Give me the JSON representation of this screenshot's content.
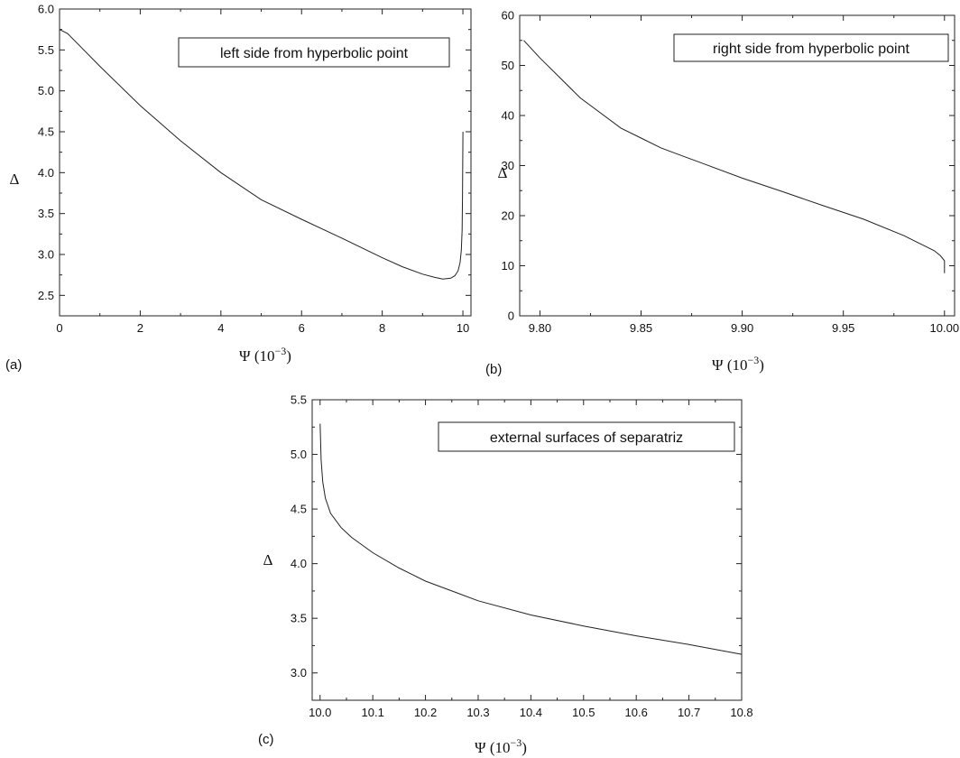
{
  "chart_data": [
    {
      "type": "line",
      "panel_label": "(a)",
      "annotation": "left side from hyperbolic point",
      "xlabel": "Ψ (10⁻³)",
      "ylabel": "Δ",
      "xlim": [
        0,
        10.2
      ],
      "ylim": [
        2.25,
        6.0
      ],
      "xticks": [
        0,
        2,
        4,
        6,
        8,
        10
      ],
      "yticks": [
        2.5,
        3.0,
        3.5,
        4.0,
        4.5,
        5.0,
        5.5,
        6.0
      ],
      "ytick_decimals": 1,
      "grid": false,
      "series": [
        {
          "x": [
            0,
            0.2,
            0.5,
            1.0,
            2.0,
            3.0,
            4.0,
            5.0,
            6.0,
            7.0,
            8.0,
            8.5,
            9.0,
            9.3,
            9.5,
            9.7,
            9.8,
            9.88,
            9.93,
            9.96,
            9.98,
            9.99,
            10.0
          ],
          "y": [
            5.75,
            5.7,
            5.55,
            5.3,
            4.82,
            4.39,
            4.0,
            3.67,
            3.43,
            3.2,
            2.96,
            2.85,
            2.76,
            2.72,
            2.7,
            2.71,
            2.74,
            2.8,
            2.9,
            3.05,
            3.3,
            3.7,
            4.5
          ]
        }
      ]
    },
    {
      "type": "line",
      "panel_label": "(b)",
      "annotation": "right side from hyperbolic point",
      "xlabel": "Ψ (10⁻³)",
      "ylabel": "Δ",
      "xlim": [
        9.79,
        10.005
      ],
      "ylim": [
        0,
        60
      ],
      "xticks": [
        9.8,
        9.85,
        9.9,
        9.95,
        10.0
      ],
      "xtick_decimals": 2,
      "yticks": [
        0,
        10,
        20,
        30,
        40,
        50,
        60
      ],
      "grid": false,
      "series": [
        {
          "x": [
            9.792,
            9.8,
            9.82,
            9.84,
            9.85,
            9.86,
            9.88,
            9.9,
            9.92,
            9.94,
            9.96,
            9.98,
            9.99,
            9.995,
            9.998,
            10.0,
            10.0
          ],
          "y": [
            55,
            51.5,
            43.5,
            37.5,
            35.5,
            33.5,
            30.5,
            27.5,
            24.8,
            22.0,
            19.3,
            16.0,
            14.0,
            13.0,
            12.0,
            11.0,
            8.5
          ]
        }
      ]
    },
    {
      "type": "line",
      "panel_label": "(c)",
      "annotation": "external surfaces of separatriz",
      "xlabel": "Ψ (10⁻³)",
      "ylabel": "Δ",
      "xlim": [
        9.985,
        10.8
      ],
      "ylim": [
        2.75,
        5.5
      ],
      "xticks": [
        10.0,
        10.1,
        10.2,
        10.3,
        10.4,
        10.5,
        10.6,
        10.7,
        10.8
      ],
      "xtick_decimals": 1,
      "yticks": [
        3.0,
        3.5,
        4.0,
        4.5,
        5.0,
        5.5
      ],
      "ytick_decimals": 1,
      "grid": false,
      "series": [
        {
          "x": [
            10.0,
            10.002,
            10.005,
            10.01,
            10.02,
            10.04,
            10.06,
            10.1,
            10.15,
            10.2,
            10.3,
            10.4,
            10.5,
            10.6,
            10.7,
            10.8
          ],
          "y": [
            5.28,
            4.95,
            4.75,
            4.6,
            4.46,
            4.33,
            4.24,
            4.1,
            3.96,
            3.84,
            3.66,
            3.53,
            3.43,
            3.34,
            3.26,
            3.17
          ]
        }
      ]
    }
  ]
}
